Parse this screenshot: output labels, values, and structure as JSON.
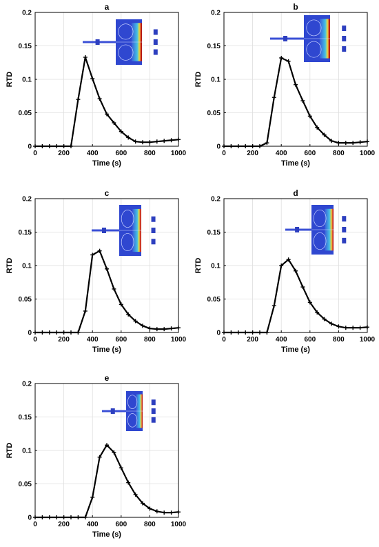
{
  "chart_data": [
    {
      "type": "line",
      "title": "a",
      "xlabel": "Time (s)",
      "ylabel": "RTD",
      "xlim": [
        0,
        1000
      ],
      "ylim": [
        0,
        0.2
      ],
      "grid": true,
      "xticks": [
        "0",
        "200",
        "400",
        "600",
        "800",
        "1000"
      ],
      "yticks": [
        "0",
        "0.05",
        "0.1",
        "0.15",
        "0.2"
      ],
      "series": [
        {
          "color": "#000000",
          "x": [
            0,
            50,
            100,
            150,
            200,
            250,
            300,
            350,
            400,
            450,
            500,
            550,
            600,
            650,
            700,
            750,
            800,
            850,
            900,
            950,
            1000
          ],
          "y": [
            0,
            0,
            0,
            0,
            0,
            0,
            0.07,
            0.133,
            0.101,
            0.071,
            0.048,
            0.035,
            0.022,
            0.013,
            0.007,
            0.006,
            0.006,
            0.007,
            0.008,
            0.009,
            0.01
          ]
        }
      ],
      "inset": {
        "description_icon": "reactor-inset-a",
        "outlets": 3
      }
    },
    {
      "type": "line",
      "title": "b",
      "xlabel": "Time (s)",
      "ylabel": "RTD",
      "xlim": [
        0,
        1000
      ],
      "ylim": [
        0,
        0.2
      ],
      "grid": true,
      "xticks": [
        "0",
        "200",
        "400",
        "600",
        "800",
        "1000"
      ],
      "yticks": [
        "0",
        "0.05",
        "0.1",
        "0.15",
        "0.2"
      ],
      "series": [
        {
          "color": "#000000",
          "x": [
            0,
            50,
            100,
            150,
            200,
            250,
            300,
            350,
            400,
            450,
            500,
            550,
            600,
            650,
            700,
            750,
            800,
            850,
            900,
            950,
            1000
          ],
          "y": [
            0,
            0,
            0,
            0,
            0,
            0,
            0.005,
            0.073,
            0.132,
            0.127,
            0.092,
            0.068,
            0.045,
            0.028,
            0.017,
            0.008,
            0.005,
            0.005,
            0.005,
            0.006,
            0.007
          ]
        }
      ],
      "inset": {
        "description_icon": "reactor-inset-b",
        "outlets": 3
      }
    },
    {
      "type": "line",
      "title": "c",
      "xlabel": "Time (s)",
      "ylabel": "RTD",
      "xlim": [
        0,
        1000
      ],
      "ylim": [
        0,
        0.2
      ],
      "grid": true,
      "xticks": [
        "0",
        "200",
        "400",
        "600",
        "800",
        "1000"
      ],
      "yticks": [
        "0",
        "0.05",
        "0.1",
        "0.15",
        "0.2"
      ],
      "series": [
        {
          "color": "#000000",
          "x": [
            0,
            50,
            100,
            150,
            200,
            250,
            300,
            350,
            400,
            450,
            500,
            550,
            600,
            650,
            700,
            750,
            800,
            850,
            900,
            950,
            1000
          ],
          "y": [
            0,
            0,
            0,
            0,
            0,
            0,
            0,
            0.032,
            0.116,
            0.122,
            0.095,
            0.065,
            0.042,
            0.027,
            0.017,
            0.01,
            0.006,
            0.005,
            0.005,
            0.006,
            0.007
          ]
        }
      ],
      "inset": {
        "description_icon": "reactor-inset-c",
        "outlets": 3
      }
    },
    {
      "type": "line",
      "title": "d",
      "xlabel": "Time (s)",
      "ylabel": "RTD",
      "xlim": [
        0,
        1000
      ],
      "ylim": [
        0,
        0.2
      ],
      "grid": true,
      "xticks": [
        "0",
        "200",
        "400",
        "600",
        "800",
        "1000"
      ],
      "yticks": [
        "0",
        "0.05",
        "0.1",
        "0.15",
        "0.2"
      ],
      "series": [
        {
          "color": "#000000",
          "x": [
            0,
            50,
            100,
            150,
            200,
            250,
            300,
            350,
            400,
            450,
            500,
            550,
            600,
            650,
            700,
            750,
            800,
            850,
            900,
            950,
            1000
          ],
          "y": [
            0,
            0,
            0,
            0,
            0,
            0,
            0,
            0.04,
            0.1,
            0.109,
            0.092,
            0.068,
            0.045,
            0.03,
            0.02,
            0.013,
            0.009,
            0.007,
            0.007,
            0.007,
            0.008
          ]
        }
      ],
      "inset": {
        "description_icon": "reactor-inset-d",
        "outlets": 3
      }
    },
    {
      "type": "line",
      "title": "e",
      "xlabel": "Time (s)",
      "ylabel": "RTD",
      "xlim": [
        0,
        1000
      ],
      "ylim": [
        0,
        0.2
      ],
      "grid": true,
      "xticks": [
        "0",
        "200",
        "400",
        "600",
        "800",
        "1000"
      ],
      "yticks": [
        "0",
        "0.05",
        "0.1",
        "0.15",
        "0.2"
      ],
      "series": [
        {
          "color": "#000000",
          "x": [
            0,
            50,
            100,
            150,
            200,
            250,
            300,
            350,
            400,
            450,
            500,
            550,
            600,
            650,
            700,
            750,
            800,
            850,
            900,
            950,
            1000
          ],
          "y": [
            0,
            0,
            0,
            0,
            0,
            0,
            0,
            0,
            0.03,
            0.09,
            0.108,
            0.097,
            0.074,
            0.052,
            0.034,
            0.021,
            0.013,
            0.009,
            0.007,
            0.007,
            0.008
          ]
        }
      ],
      "inset": {
        "description_icon": "reactor-inset-e",
        "outlets": 3
      }
    }
  ]
}
